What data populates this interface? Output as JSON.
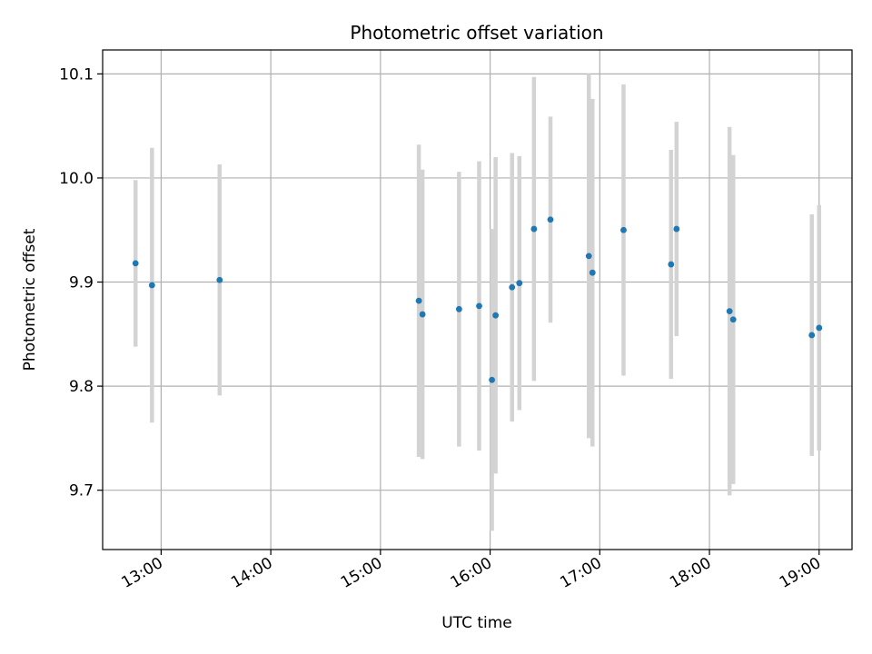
{
  "chart_data": {
    "type": "scatter",
    "title": "Photometric offset variation",
    "xlabel": "UTC time",
    "ylabel": "Photometric offset",
    "x_ticks": [
      "13:00",
      "14:00",
      "15:00",
      "16:00",
      "17:00",
      "18:00",
      "19:00"
    ],
    "y_ticks": [
      "9.7",
      "9.8",
      "9.9",
      "10.0",
      "10.1"
    ],
    "xlim": [
      "12:28",
      "19:18"
    ],
    "ylim": [
      9.643,
      10.123
    ],
    "grid": true,
    "colors": {
      "points": "#1f77b4",
      "errorbars": "#d3d3d3",
      "grid": "#b0b0b0"
    },
    "points": [
      {
        "x": "12:46",
        "y": 9.918,
        "err": 0.08
      },
      {
        "x": "12:55",
        "y": 9.897,
        "err": 0.132
      },
      {
        "x": "13:32",
        "y": 9.902,
        "err": 0.111
      },
      {
        "x": "15:21",
        "y": 9.882,
        "err": 0.15
      },
      {
        "x": "15:23",
        "y": 9.869,
        "err": 0.139
      },
      {
        "x": "15:43",
        "y": 9.874,
        "err": 0.132
      },
      {
        "x": "15:54",
        "y": 9.877,
        "err": 0.139
      },
      {
        "x": "16:01",
        "y": 9.806,
        "err": 0.145
      },
      {
        "x": "16:03",
        "y": 9.868,
        "err": 0.152
      },
      {
        "x": "16:12",
        "y": 9.895,
        "err": 0.129
      },
      {
        "x": "16:16",
        "y": 9.899,
        "err": 0.122
      },
      {
        "x": "16:24",
        "y": 9.951,
        "err": 0.146
      },
      {
        "x": "16:33",
        "y": 9.96,
        "err": 0.099
      },
      {
        "x": "16:54",
        "y": 9.925,
        "err": 0.175
      },
      {
        "x": "16:56",
        "y": 9.909,
        "err": 0.167
      },
      {
        "x": "17:13",
        "y": 9.95,
        "err": 0.14
      },
      {
        "x": "17:39",
        "y": 9.917,
        "err": 0.11
      },
      {
        "x": "17:42",
        "y": 9.951,
        "err": 0.103
      },
      {
        "x": "18:11",
        "y": 9.872,
        "err": 0.177
      },
      {
        "x": "18:13",
        "y": 9.864,
        "err": 0.158
      },
      {
        "x": "18:56",
        "y": 9.849,
        "err": 0.116
      },
      {
        "x": "19:00",
        "y": 9.856,
        "err": 0.118
      }
    ]
  }
}
